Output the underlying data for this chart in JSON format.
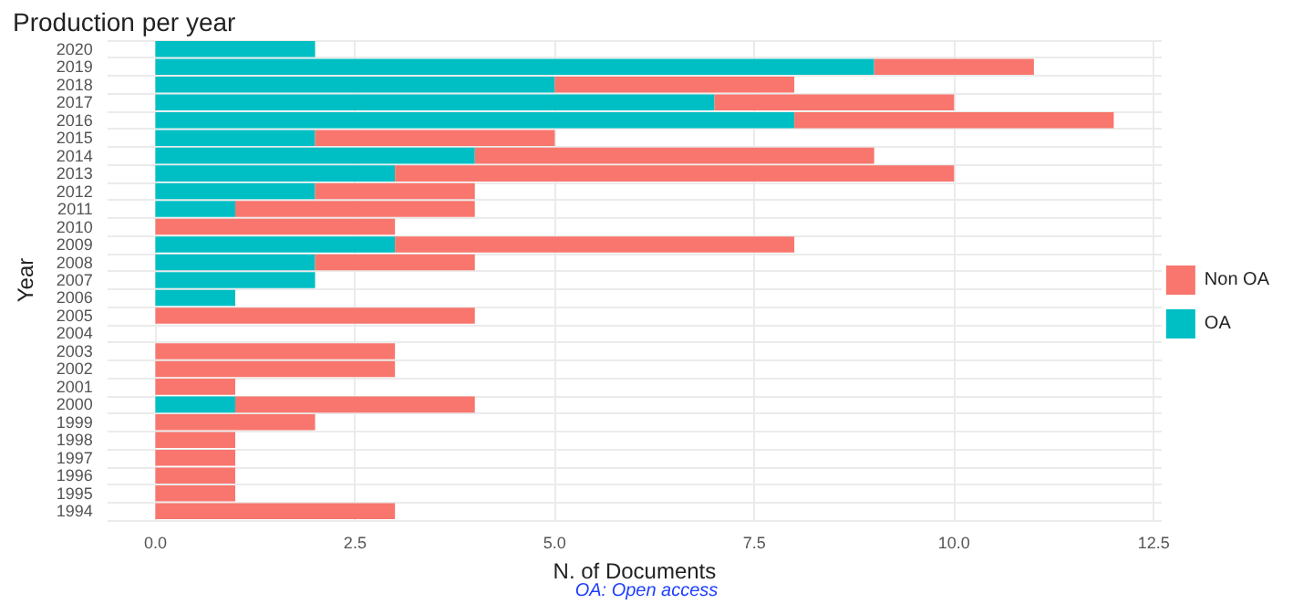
{
  "chart_data": {
    "type": "bar",
    "title": "Production per year",
    "xlabel": "N. of Documents",
    "ylabel": "Year",
    "orientation": "horizontal",
    "stacked": true,
    "categories": [
      "2020",
      "2019",
      "2018",
      "2017",
      "2016",
      "2015",
      "2014",
      "2013",
      "2012",
      "2011",
      "2010",
      "2009",
      "2008",
      "2007",
      "2006",
      "2005",
      "2004",
      "2003",
      "2002",
      "2001",
      "2000",
      "1999",
      "1998",
      "1997",
      "1996",
      "1995",
      "1994"
    ],
    "series": [
      {
        "name": "OA",
        "color": "#00bfc4",
        "values": [
          2,
          9,
          5,
          7,
          8,
          2,
          4,
          3,
          2,
          1,
          0,
          3,
          2,
          2,
          1,
          0,
          0,
          0,
          0,
          0,
          1,
          0,
          0,
          0,
          0,
          0,
          0
        ]
      },
      {
        "name": "Non OA",
        "color": "#f8766d",
        "values": [
          0,
          2,
          3,
          3,
          4,
          3,
          5,
          7,
          2,
          3,
          3,
          5,
          2,
          0,
          0,
          4,
          0,
          3,
          3,
          1,
          3,
          2,
          1,
          1,
          1,
          1,
          3
        ]
      }
    ],
    "xlim": [
      -0.6,
      12.6
    ],
    "xticks": [
      {
        "value": 0,
        "label": "0.0"
      },
      2.5,
      {
        "value": 5,
        "label": "5.0"
      },
      7.5,
      {
        "value": 10,
        "label": "10.0"
      },
      12.5
    ],
    "grid": true,
    "legend": "right",
    "annotations": [
      "OA: Open access"
    ]
  }
}
